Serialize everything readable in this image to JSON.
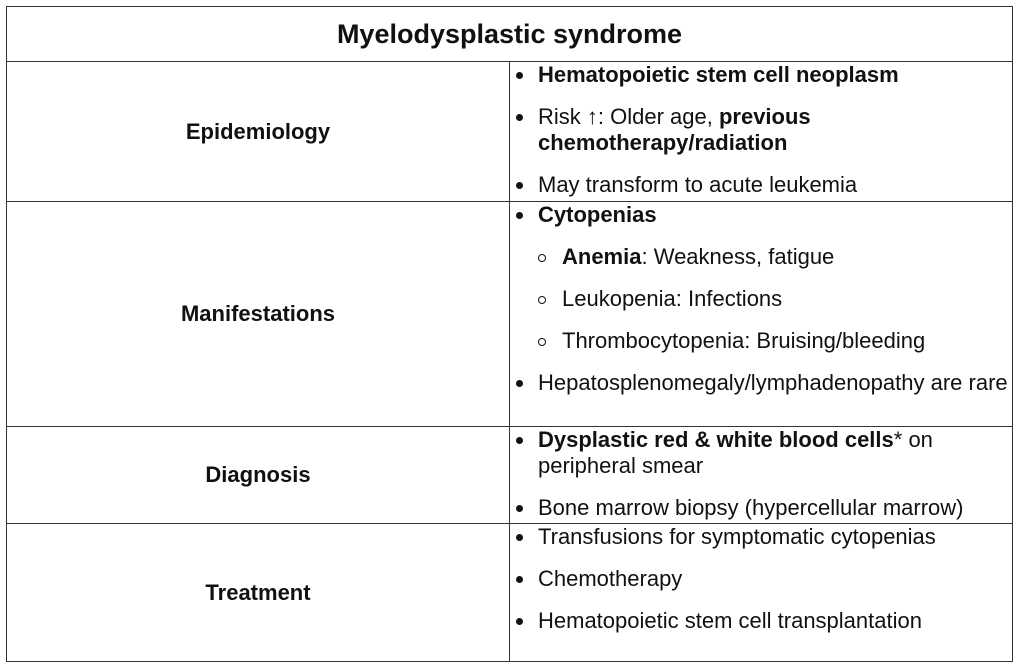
{
  "title": "Myelodysplastic syndrome",
  "sections": [
    {
      "label": "Epidemiology",
      "items": [
        {
          "bold": "Hematopoietic stem cell neoplasm",
          "text": ""
        },
        {
          "text": "Risk ↑: Older age, ",
          "bold": "previous chemotherapy/radiation"
        },
        {
          "text": "May transform to acute leukemia"
        }
      ]
    },
    {
      "label": "Manifestations",
      "items": [
        {
          "bold": "Cytopenias"
        },
        {
          "bold": "Anemia",
          "text": ": Weakness, fatigue"
        },
        {
          "text": "Leukopenia: Infections"
        },
        {
          "text": "Thrombocytopenia: Bruising/bleeding"
        },
        {
          "text": "Hepatosplenomegaly/lymphadenopathy are rare"
        }
      ]
    },
    {
      "label": "Diagnosis",
      "items": [
        {
          "bold": "Dysplastic red & white blood cells",
          "text": "* on peripheral smear"
        },
        {
          "text": "Bone marrow biopsy (hypercellular marrow)"
        }
      ]
    },
    {
      "label": "Treatment",
      "items": [
        {
          "text": "Transfusions for symptomatic cytopenias"
        },
        {
          "text": "Chemotherapy"
        },
        {
          "text": "Hematopoietic stem cell transplantation"
        }
      ]
    }
  ]
}
